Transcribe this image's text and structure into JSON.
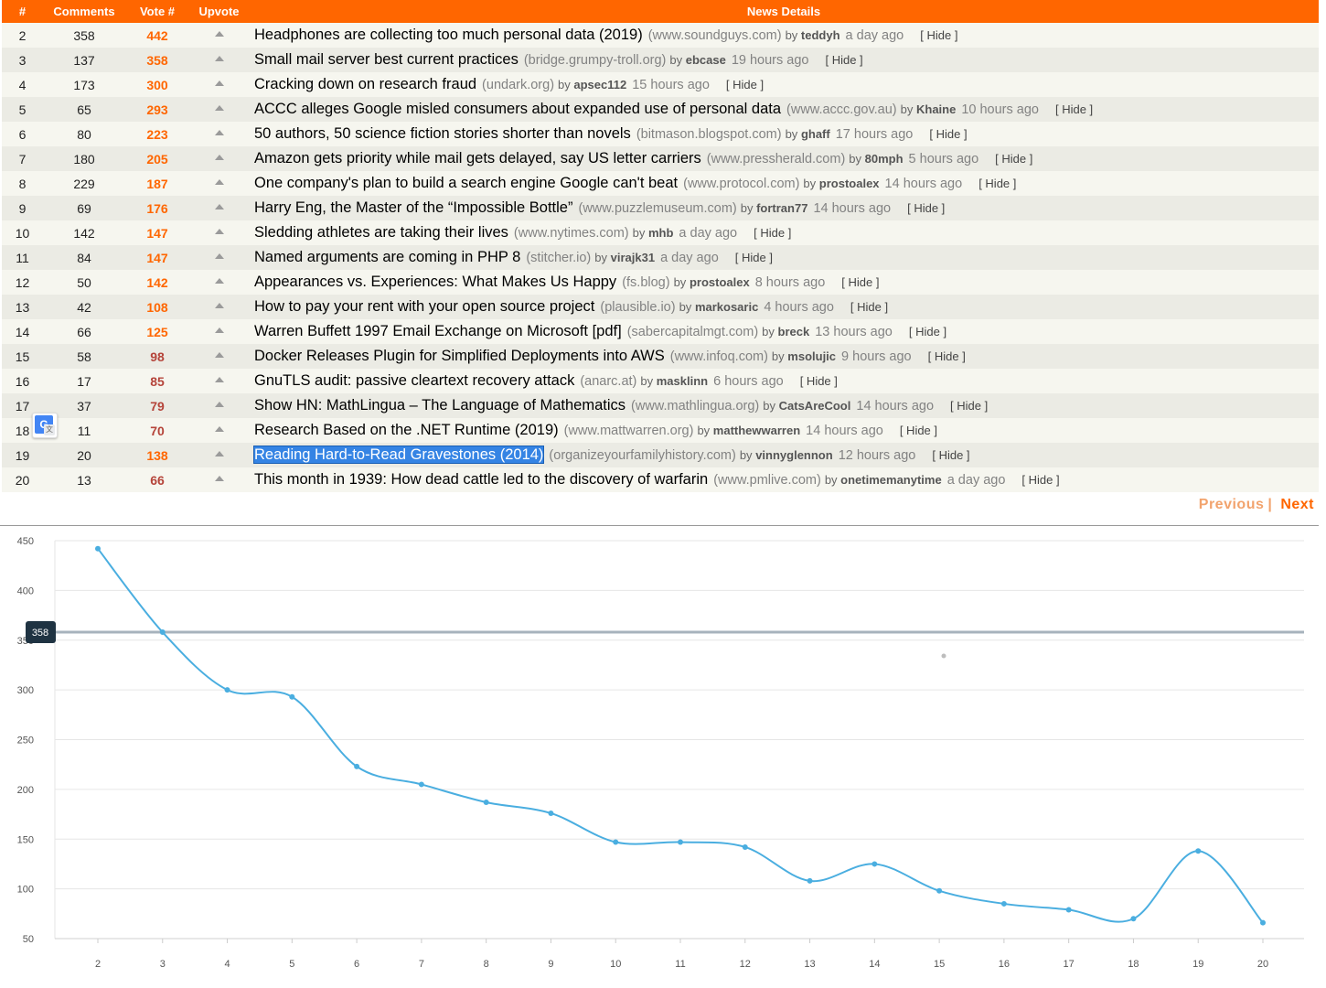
{
  "table": {
    "headers": {
      "rank": "#",
      "comments": "Comments",
      "vote": "Vote #",
      "upvote": "Upvote",
      "details": "News Details"
    },
    "rows": [
      {
        "rank": "2",
        "comments": "358",
        "votes": "442",
        "title": "Headphones are collecting too much personal data (2019)",
        "site": "(www.soundguys.com)",
        "by": "by",
        "user": "teddyh",
        "age": "a day ago",
        "hide": "[ Hide ]"
      },
      {
        "rank": "3",
        "comments": "137",
        "votes": "358",
        "title": "Small mail server best current practices",
        "site": "(bridge.grumpy-troll.org)",
        "by": "by",
        "user": "ebcase",
        "age": "19 hours ago",
        "hide": "[ Hide ]"
      },
      {
        "rank": "4",
        "comments": "173",
        "votes": "300",
        "title": "Cracking down on research fraud",
        "site": "(undark.org)",
        "by": "by",
        "user": "apsec112",
        "age": "15 hours ago",
        "hide": "[ Hide ]"
      },
      {
        "rank": "5",
        "comments": "65",
        "votes": "293",
        "title": "ACCC alleges Google misled consumers about expanded use of personal data",
        "site": "(www.accc.gov.au)",
        "by": "by",
        "user": "Khaine",
        "age": "10 hours ago",
        "hide": "[ Hide ]"
      },
      {
        "rank": "6",
        "comments": "80",
        "votes": "223",
        "title": "50 authors, 50 science fiction stories shorter than novels",
        "site": "(bitmason.blogspot.com)",
        "by": "by",
        "user": "ghaff",
        "age": "17 hours ago",
        "hide": "[ Hide ]"
      },
      {
        "rank": "7",
        "comments": "180",
        "votes": "205",
        "title": "Amazon gets priority while mail gets delayed, say US letter carriers",
        "site": "(www.pressherald.com)",
        "by": "by",
        "user": "80mph",
        "age": "5 hours ago",
        "hide": "[ Hide ]"
      },
      {
        "rank": "8",
        "comments": "229",
        "votes": "187",
        "title": "One company's plan to build a search engine Google can't beat",
        "site": "(www.protocol.com)",
        "by": "by",
        "user": "prostoalex",
        "age": "14 hours ago",
        "hide": "[ Hide ]"
      },
      {
        "rank": "9",
        "comments": "69",
        "votes": "176",
        "title": "Harry Eng, the Master of the “Impossible Bottle”",
        "site": "(www.puzzlemuseum.com)",
        "by": "by",
        "user": "fortran77",
        "age": "14 hours ago",
        "hide": "[ Hide ]"
      },
      {
        "rank": "10",
        "comments": "142",
        "votes": "147",
        "title": "Sledding athletes are taking their lives",
        "site": "(www.nytimes.com)",
        "by": "by",
        "user": "mhb",
        "age": "a day ago",
        "hide": "[ Hide ]"
      },
      {
        "rank": "11",
        "comments": "84",
        "votes": "147",
        "title": "Named arguments are coming in PHP 8",
        "site": "(stitcher.io)",
        "by": "by",
        "user": "virajk31",
        "age": "a day ago",
        "hide": "[ Hide ]"
      },
      {
        "rank": "12",
        "comments": "50",
        "votes": "142",
        "title": "Appearances vs. Experiences: What Makes Us Happy",
        "site": "(fs.blog)",
        "by": "by",
        "user": "prostoalex",
        "age": "8 hours ago",
        "hide": "[ Hide ]"
      },
      {
        "rank": "13",
        "comments": "42",
        "votes": "108",
        "title": "How to pay your rent with your open source project",
        "site": "(plausible.io)",
        "by": "by",
        "user": "markosaric",
        "age": "4 hours ago",
        "hide": "[ Hide ]"
      },
      {
        "rank": "14",
        "comments": "66",
        "votes": "125",
        "title": "Warren Buffett 1997 Email Exchange on Microsoft [pdf]",
        "site": "(sabercapitalmgt.com)",
        "by": "by",
        "user": "breck",
        "age": "13 hours ago",
        "hide": "[ Hide ]"
      },
      {
        "rank": "15",
        "comments": "58",
        "votes": "98",
        "title": "Docker Releases Plugin for Simplified Deployments into AWS",
        "site": "(www.infoq.com)",
        "by": "by",
        "user": "msolujic",
        "age": "9 hours ago",
        "hide": "[ Hide ]"
      },
      {
        "rank": "16",
        "comments": "17",
        "votes": "85",
        "title": "GnuTLS audit: passive cleartext recovery attack",
        "site": "(anarc.at)",
        "by": "by",
        "user": "masklinn",
        "age": "6 hours ago",
        "hide": "[ Hide ]"
      },
      {
        "rank": "17",
        "comments": "37",
        "votes": "79",
        "title": "Show HN: MathLingua – The Language of Mathematics",
        "site": "(www.mathlingua.org)",
        "by": "by",
        "user": "CatsAreCool",
        "age": "14 hours ago",
        "hide": "[ Hide ]"
      },
      {
        "rank": "18",
        "comments": "11",
        "votes": "70",
        "title": "Research Based on the .NET Runtime (2019)",
        "site": "(www.mattwarren.org)",
        "by": "by",
        "user": "matthewwarren",
        "age": "14 hours ago",
        "hide": "[ Hide ]"
      },
      {
        "rank": "19",
        "comments": "20",
        "votes": "138",
        "title": "Reading Hard-to-Read Gravestones (2014)",
        "site": "(organizeyourfamilyhistory.com)",
        "by": "by",
        "user": "vinnyglennon",
        "age": "12 hours ago",
        "hide": "[ Hide ]",
        "selected": true
      },
      {
        "rank": "20",
        "comments": "13",
        "votes": "66",
        "title": "This month in 1939: How dead cattle led to the discovery of warfarin",
        "site": "(www.pmlive.com)",
        "by": "by",
        "user": "onetimemanytime",
        "age": "a day ago",
        "hide": "[ Hide ]"
      }
    ]
  },
  "translate_badge": {
    "icon": "google-translate-icon",
    "glyph": "G"
  },
  "pager": {
    "previous": "Previous",
    "separator": "|",
    "next": "Next"
  },
  "colors": {
    "header_bg": "#ff6600",
    "vote_high": "#ff6600",
    "vote_low": "#b5443a",
    "line": "#4aaee0",
    "tooltip_bg": "#1f3342",
    "crosshair": "#a7b3bd",
    "selection": "#3584e4"
  },
  "chart_data": {
    "type": "line",
    "categories": [
      "2",
      "3",
      "4",
      "5",
      "6",
      "7",
      "8",
      "9",
      "10",
      "11",
      "12",
      "13",
      "14",
      "15",
      "16",
      "17",
      "18",
      "19",
      "20"
    ],
    "values": [
      442,
      358,
      300,
      293,
      223,
      205,
      187,
      176,
      147,
      147,
      142,
      108,
      125,
      98,
      85,
      79,
      70,
      138,
      66
    ],
    "yticks": [
      50,
      100,
      150,
      200,
      250,
      300,
      350,
      400,
      450
    ],
    "ylim": [
      50,
      450
    ],
    "grid": "horizontal",
    "hover": {
      "value": 358,
      "label": "358"
    }
  }
}
